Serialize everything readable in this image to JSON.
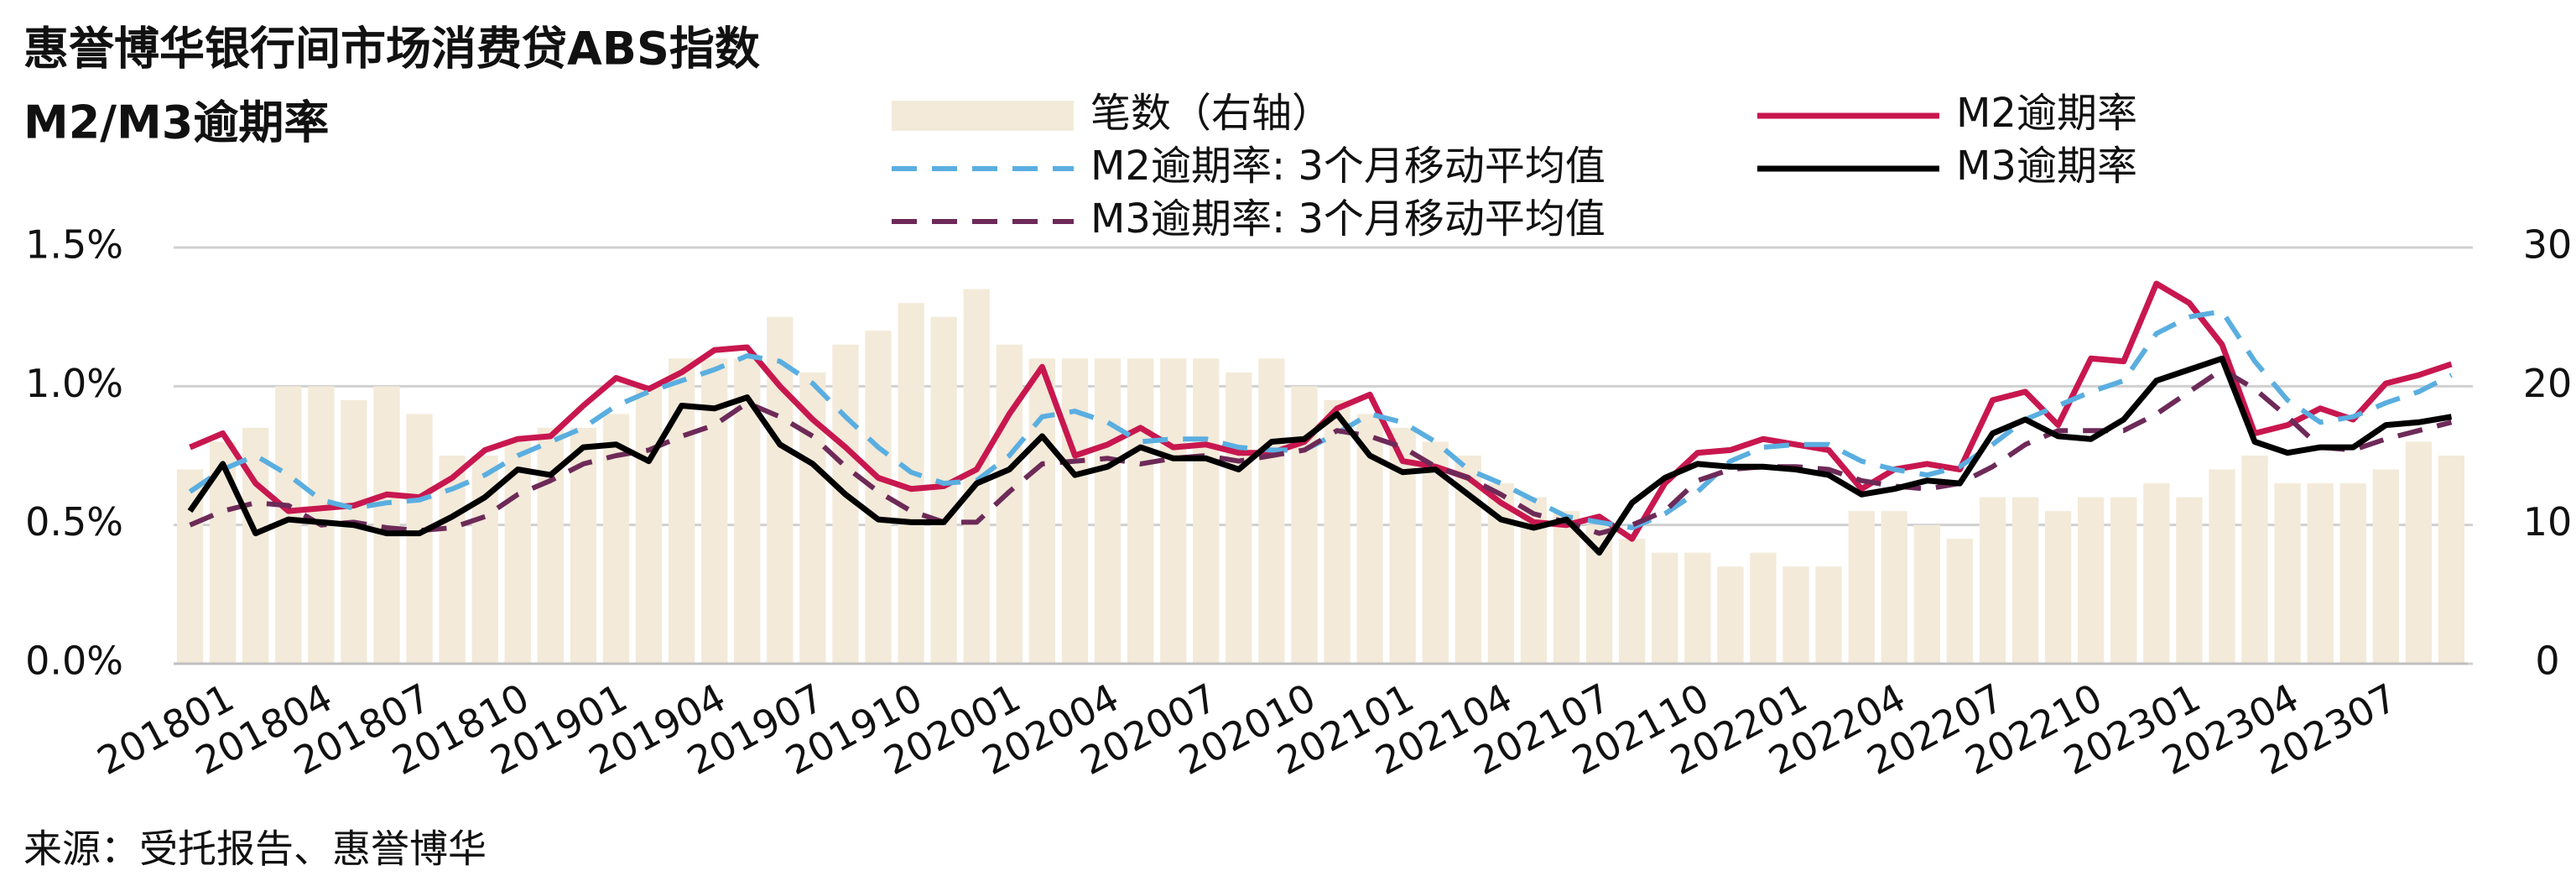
{
  "chart_data": {
    "type": "bar",
    "title": "惠誉博华银行间市场消费贷ABS指数",
    "subtitle": "M2/M3逾期率",
    "source": "来源：受托报告、惠誉博华",
    "categories": [
      "201801",
      null,
      null,
      "201804",
      null,
      null,
      "201807",
      null,
      null,
      "201810",
      null,
      null,
      "201901",
      null,
      null,
      "201904",
      null,
      null,
      "201907",
      null,
      null,
      "201910",
      null,
      null,
      "202001",
      null,
      null,
      "202004",
      null,
      null,
      "202007",
      null,
      null,
      "202010",
      null,
      null,
      "202101",
      null,
      null,
      "202104",
      null,
      null,
      "202107",
      null,
      null,
      "202110",
      null,
      null,
      "202201",
      null,
      null,
      "202204",
      null,
      null,
      "202207",
      null,
      null,
      "202210",
      null,
      null,
      "202301",
      null,
      null,
      "202304",
      null,
      null,
      "202307",
      null,
      null,
      null
    ],
    "series": [
      {
        "name": "笔数（右轴）",
        "type": "bar",
        "axis": "y2",
        "color": "#f3ead9",
        "values": [
          14,
          16,
          17,
          20,
          20,
          19,
          20,
          18,
          15,
          15,
          16,
          17,
          17,
          18,
          20,
          22,
          22,
          22,
          25,
          21,
          23,
          24,
          26,
          25,
          27,
          23,
          22,
          22,
          22,
          22,
          22,
          22,
          21,
          22,
          20,
          19,
          18,
          17,
          16,
          15,
          13,
          12,
          11,
          10,
          9,
          8,
          8,
          7,
          8,
          7,
          7,
          11,
          11,
          10,
          9,
          12,
          12,
          11,
          12,
          12,
          13,
          12,
          14,
          15,
          13,
          13,
          13,
          14,
          16,
          15
        ]
      },
      {
        "name": "M2逾期率",
        "type": "line",
        "color": "#c8174f",
        "values": [
          0.78,
          0.83,
          0.65,
          0.55,
          0.56,
          0.57,
          0.61,
          0.6,
          0.67,
          0.77,
          0.81,
          0.82,
          0.93,
          1.03,
          0.99,
          1.05,
          1.13,
          1.14,
          1.0,
          0.88,
          0.78,
          0.67,
          0.63,
          0.64,
          0.7,
          0.9,
          1.07,
          0.75,
          0.79,
          0.85,
          0.78,
          0.79,
          0.76,
          0.76,
          0.8,
          0.92,
          0.97,
          0.73,
          0.71,
          0.67,
          0.58,
          0.51,
          0.5,
          0.53,
          0.45,
          0.65,
          0.76,
          0.77,
          0.81,
          0.79,
          0.77,
          0.63,
          0.7,
          0.72,
          0.7,
          0.95,
          0.98,
          0.86,
          1.1,
          1.09,
          1.37,
          1.3,
          1.15,
          0.83,
          0.86,
          0.92,
          0.88,
          1.01,
          1.04,
          1.08
        ]
      },
      {
        "name": "M2逾期率: 3个月移动平均值",
        "type": "line",
        "dashed": true,
        "color": "#5aaee0",
        "values": [
          0.62,
          0.7,
          0.75,
          0.68,
          0.59,
          0.56,
          0.58,
          0.59,
          0.63,
          0.68,
          0.75,
          0.8,
          0.85,
          0.93,
          0.98,
          1.02,
          1.06,
          1.11,
          1.09,
          1.01,
          0.89,
          0.78,
          0.69,
          0.65,
          0.66,
          0.75,
          0.89,
          0.91,
          0.87,
          0.8,
          0.81,
          0.81,
          0.78,
          0.77,
          0.77,
          0.83,
          0.9,
          0.87,
          0.8,
          0.7,
          0.65,
          0.59,
          0.53,
          0.51,
          0.49,
          0.54,
          0.62,
          0.73,
          0.78,
          0.79,
          0.79,
          0.73,
          0.7,
          0.68,
          0.71,
          0.79,
          0.88,
          0.93,
          0.98,
          1.02,
          1.19,
          1.25,
          1.27,
          1.09,
          0.95,
          0.87,
          0.89,
          0.94,
          0.98,
          1.04
        ]
      },
      {
        "name": "M3逾期率: 3个月移动平均值",
        "type": "line",
        "dashed": true,
        "color": "#6d2a58",
        "values": [
          0.5,
          0.55,
          0.58,
          0.57,
          0.5,
          0.51,
          0.49,
          0.48,
          0.49,
          0.53,
          0.61,
          0.66,
          0.72,
          0.75,
          0.77,
          0.82,
          0.86,
          0.94,
          0.89,
          0.82,
          0.71,
          0.62,
          0.55,
          0.51,
          0.51,
          0.62,
          0.72,
          0.73,
          0.74,
          0.72,
          0.74,
          0.75,
          0.73,
          0.75,
          0.77,
          0.84,
          0.82,
          0.78,
          0.71,
          0.67,
          0.61,
          0.54,
          0.51,
          0.47,
          0.5,
          0.55,
          0.66,
          0.7,
          0.71,
          0.71,
          0.7,
          0.66,
          0.64,
          0.63,
          0.65,
          0.71,
          0.79,
          0.84,
          0.84,
          0.84,
          0.9,
          0.98,
          1.06,
          0.99,
          0.89,
          0.78,
          0.77,
          0.81,
          0.84,
          0.87
        ]
      },
      {
        "name": "M3逾期率",
        "type": "line",
        "color": "#000000",
        "values": [
          0.55,
          0.72,
          0.47,
          0.52,
          0.51,
          0.5,
          0.47,
          0.47,
          0.53,
          0.6,
          0.7,
          0.68,
          0.78,
          0.79,
          0.73,
          0.93,
          0.92,
          0.96,
          0.79,
          0.72,
          0.61,
          0.52,
          0.51,
          0.51,
          0.65,
          0.7,
          0.82,
          0.68,
          0.71,
          0.78,
          0.74,
          0.74,
          0.7,
          0.8,
          0.81,
          0.9,
          0.75,
          0.69,
          0.7,
          0.61,
          0.52,
          0.49,
          0.52,
          0.4,
          0.58,
          0.67,
          0.72,
          0.71,
          0.71,
          0.7,
          0.68,
          0.61,
          0.63,
          0.66,
          0.65,
          0.83,
          0.88,
          0.82,
          0.81,
          0.88,
          1.02,
          1.06,
          1.1,
          0.8,
          0.76,
          0.78,
          0.78,
          0.86,
          0.87,
          0.89
        ]
      }
    ],
    "ylim": [
      0,
      1.5
    ],
    "yticks": [
      {
        "value": 0,
        "label": "0.0%"
      },
      {
        "value": 0.5,
        "label": "0.5%"
      },
      {
        "value": 1.0,
        "label": "1.0%"
      },
      {
        "value": 1.5,
        "label": "1.5%"
      }
    ],
    "y2lim": [
      0,
      30
    ],
    "y2ticks": [
      0,
      10,
      20,
      30
    ],
    "grid": true
  }
}
